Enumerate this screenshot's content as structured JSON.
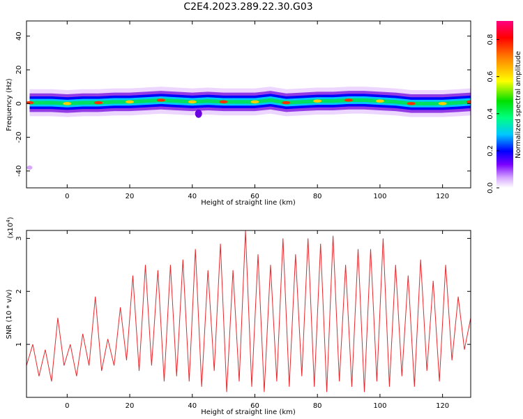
{
  "title": "C2E4.2023.289.22.30.G03",
  "chart_data": [
    {
      "type": "heatmap",
      "xlabel": "Height of straight line (km)",
      "ylabel": "Frequency (Hz)",
      "xlim": [
        -13,
        129
      ],
      "ylim": [
        -50,
        49
      ],
      "xticks": [
        0,
        20,
        40,
        60,
        80,
        100,
        120
      ],
      "yticks": [
        -40,
        -20,
        0,
        20,
        40
      ],
      "description_values": {
        "band_center_hz": [
          [
            -12,
            0.5
          ],
          [
            -5,
            0.5
          ],
          [
            0,
            0
          ],
          [
            5,
            0.5
          ],
          [
            10,
            0.5
          ],
          [
            15,
            1
          ],
          [
            20,
            1
          ],
          [
            25,
            1.5
          ],
          [
            30,
            2
          ],
          [
            35,
            1.5
          ],
          [
            40,
            1
          ],
          [
            45,
            1.5
          ],
          [
            50,
            1
          ],
          [
            55,
            1
          ],
          [
            60,
            1
          ],
          [
            65,
            2
          ],
          [
            70,
            0.5
          ],
          [
            75,
            1
          ],
          [
            80,
            1.5
          ],
          [
            85,
            1.5
          ],
          [
            90,
            2
          ],
          [
            95,
            2
          ],
          [
            100,
            1.5
          ],
          [
            105,
            1
          ],
          [
            110,
            0
          ],
          [
            115,
            0
          ],
          [
            120,
            0
          ],
          [
            125,
            0.5
          ],
          [
            129,
            1
          ]
        ],
        "band_halfwidth_hz": 5,
        "blob_near_x42_hz": -6,
        "blob_near_x-12_hz": -38
      },
      "colorbar": {
        "label": "Normalized spectral amplitude",
        "range": [
          0,
          0.9
        ],
        "ticks": [
          0,
          0.2,
          0.4,
          0.6,
          0.8
        ],
        "tick_labels": [
          "0.0",
          "0.2",
          "0.4",
          "0.6",
          "0.8"
        ],
        "colors": [
          "#ffffff",
          "#7a00ff",
          "#0000ff",
          "#00c8ff",
          "#00ff80",
          "#00e000",
          "#ffff00",
          "#ff8000",
          "#ff0000",
          "#ff0080"
        ]
      }
    },
    {
      "type": "line",
      "xlabel": "Height of straight line (km)",
      "ylabel": "SNR (10 * v/v)",
      "y_multiplier_label": "(x10",
      "y_multiplier_exp": "4",
      "y_multiplier_close": ")",
      "xlim": [
        -13,
        129
      ],
      "ylim": [
        0,
        3.15
      ],
      "xticks": [
        0,
        20,
        40,
        60,
        80,
        100,
        120
      ],
      "yticks": [
        1,
        2,
        3
      ],
      "color": "#e8262a",
      "x": [
        -13,
        -11,
        -9,
        -7,
        -5,
        -3,
        -1,
        1,
        3,
        5,
        7,
        9,
        11,
        13,
        15,
        17,
        19,
        21,
        23,
        25,
        27,
        29,
        31,
        33,
        35,
        37,
        39,
        41,
        43,
        45,
        47,
        49,
        51,
        53,
        55,
        57,
        59,
        61,
        63,
        65,
        67,
        69,
        71,
        73,
        75,
        77,
        79,
        81,
        83,
        85,
        87,
        89,
        91,
        93,
        95,
        97,
        99,
        101,
        103,
        105,
        107,
        109,
        111,
        113,
        115,
        117,
        119,
        121,
        123,
        125,
        127,
        129
      ],
      "values": [
        0.6,
        1.0,
        0.4,
        0.9,
        0.3,
        1.5,
        0.6,
        1.0,
        0.4,
        1.2,
        0.6,
        1.9,
        0.5,
        1.1,
        0.6,
        1.7,
        0.7,
        2.3,
        0.5,
        2.5,
        0.6,
        2.4,
        0.3,
        2.5,
        0.4,
        2.6,
        0.3,
        2.8,
        0.2,
        2.4,
        0.5,
        2.9,
        0.1,
        2.4,
        0.3,
        3.15,
        0.2,
        2.7,
        0.1,
        2.5,
        0.3,
        3.0,
        0.2,
        2.7,
        0.4,
        3.0,
        0.2,
        2.9,
        0.1,
        3.05,
        0.3,
        2.5,
        0.2,
        2.8,
        0.1,
        2.8,
        0.3,
        3.0,
        0.2,
        2.5,
        0.4,
        2.3,
        0.2,
        2.6,
        0.5,
        2.2,
        0.3,
        2.5,
        0.7,
        1.9,
        0.9,
        1.5
      ]
    }
  ]
}
